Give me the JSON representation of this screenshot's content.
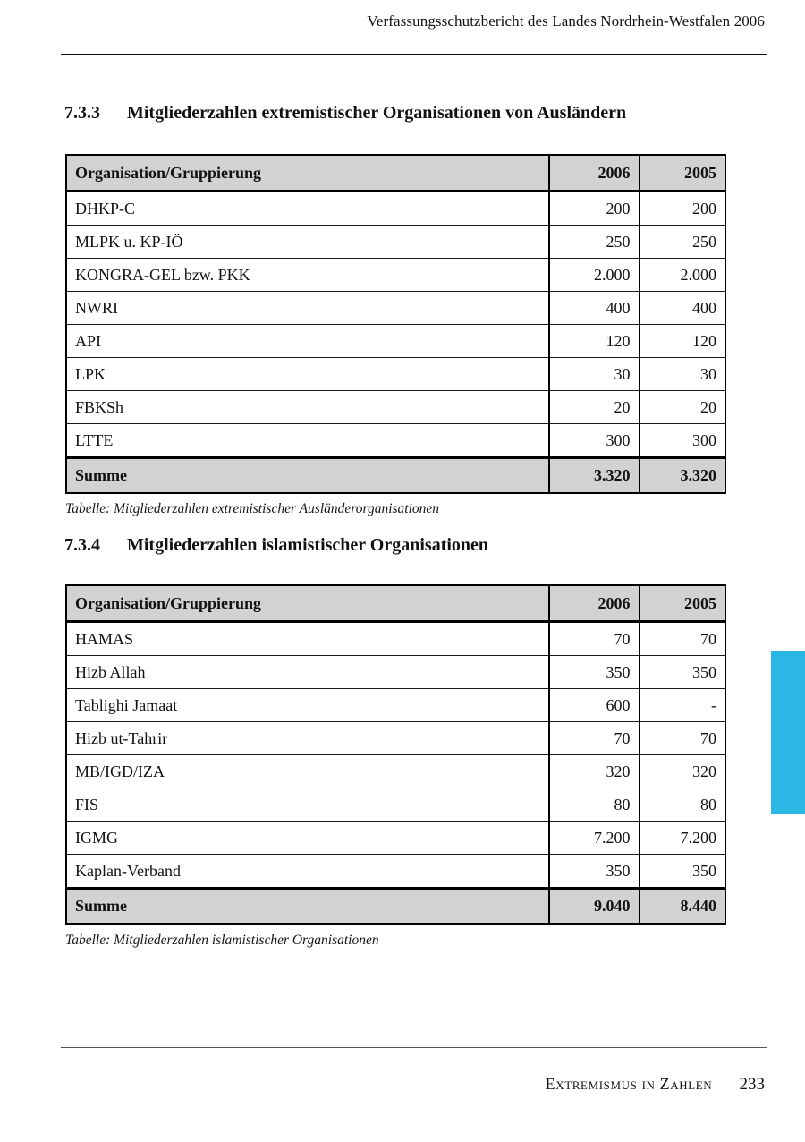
{
  "page": {
    "running_header": "Verfassungsschutzbericht des Landes Nordrhein-Westfalen 2006",
    "footer": {
      "section_label": "Extremismus in Zahlen",
      "page_number": "233"
    },
    "accent_color": "#2BB7E5"
  },
  "sections": [
    {
      "number": "7.3.3",
      "title": "Mitgliederzahlen extremistischer Organisationen von Ausländern",
      "caption": "Tabelle: Mitgliederzahlen extremistischer Ausländerorganisationen",
      "table": {
        "headers": [
          "Organisation/Gruppierung",
          "2006",
          "2005"
        ],
        "rows": [
          [
            "DHKP-C",
            "200",
            "200"
          ],
          [
            "MLPK u. KP-IÖ",
            "250",
            "250"
          ],
          [
            "KONGRA-GEL bzw. PKK",
            "2.000",
            "2.000"
          ],
          [
            "NWRI",
            "400",
            "400"
          ],
          [
            "API",
            "120",
            "120"
          ],
          [
            "LPK",
            "30",
            "30"
          ],
          [
            "FBKSh",
            "20",
            "20"
          ],
          [
            "LTTE",
            "300",
            "300"
          ]
        ],
        "summary": [
          "Summe",
          "3.320",
          "3.320"
        ]
      }
    },
    {
      "number": "7.3.4",
      "title": "Mitgliederzahlen islamistischer Organisationen",
      "caption": "Tabelle: Mitgliederzahlen islamistischer Organisationen",
      "table": {
        "headers": [
          "Organisation/Gruppierung",
          "2006",
          "2005"
        ],
        "rows": [
          [
            "HAMAS",
            "70",
            "70"
          ],
          [
            "Hizb Allah",
            "350",
            "350"
          ],
          [
            "Tablighi Jamaat",
            "600",
            "-"
          ],
          [
            "Hizb ut-Tahrir",
            "70",
            "70"
          ],
          [
            "MB/IGD/IZA",
            "320",
            "320"
          ],
          [
            "FIS",
            "80",
            "80"
          ],
          [
            "IGMG",
            "7.200",
            "7.200"
          ],
          [
            "Kaplan-Verband",
            "350",
            "350"
          ]
        ],
        "summary": [
          "Summe",
          "9.040",
          "8.440"
        ]
      }
    }
  ]
}
